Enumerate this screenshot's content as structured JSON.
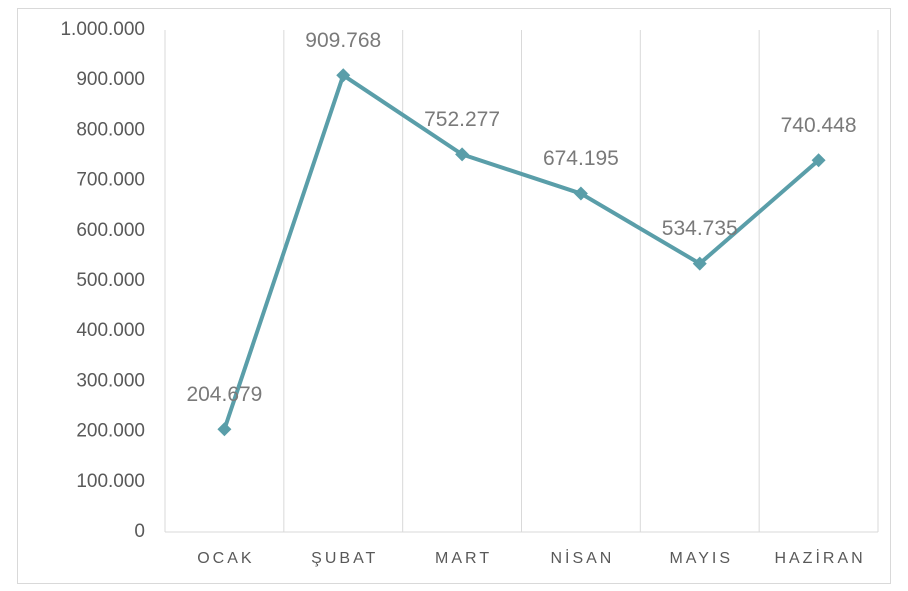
{
  "chart_data": {
    "type": "line",
    "categories": [
      "OCAK",
      "ŞUBAT",
      "MART",
      "NİSAN",
      "MAYIS",
      "HAZİRAN"
    ],
    "series": [
      {
        "color": "#5a9ea9",
        "values": [
          204679,
          909768,
          752277,
          674195,
          534735,
          740448
        ],
        "value_labels": [
          "204.679",
          "909.768",
          "752.277",
          "674.195",
          "534.735",
          "740.448"
        ]
      }
    ],
    "ylim": [
      0,
      1000000
    ],
    "yticks": [
      0,
      {
        "value": 100000,
        "label": "100.000"
      },
      {
        "value": 200000,
        "label": "200.000"
      },
      {
        "value": 300000,
        "label": "300.000"
      },
      {
        "value": 400000,
        "label": "400.000"
      },
      {
        "value": 500000,
        "label": "500.000"
      },
      {
        "value": 600000,
        "label": "600.000"
      },
      {
        "value": 700000,
        "label": "700.000"
      },
      {
        "value": 800000,
        "label": "800.000"
      },
      {
        "value": 900000,
        "label": "900.000"
      },
      {
        "value": 1000000,
        "label": "1.000.000"
      }
    ],
    "x_grid": true,
    "markers": "diamond"
  }
}
